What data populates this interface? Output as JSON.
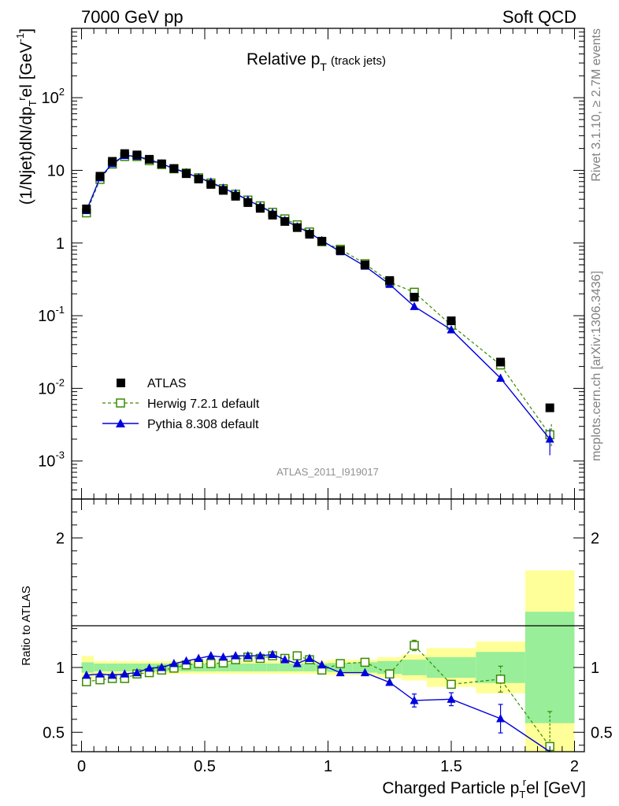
{
  "header": {
    "left_label": "7000 GeV pp",
    "right_label": "Soft QCD",
    "side_label_top": "Rivet 3.1.10, ≥ 2.7M events",
    "side_label_bottom": "mcplots.cern.ch [arXiv:1306.3436]"
  },
  "chart_data": [
    {
      "type": "scatter",
      "title_main": "Relative p",
      "title_sub": "T",
      "title_extra": "(track jets)",
      "ylabel": "(1/Njet)dN/dp",
      "ylabel_sub": "T",
      "ylabel_sup": "r",
      "ylabel_tail": "el [GeV",
      "ylabel_unit_sup": "-1",
      "ylabel_close": "]",
      "yscale": "log",
      "ylim": [
        0.0003,
        900
      ],
      "xlim": [
        -0.04,
        2.04
      ],
      "yticks": [
        {
          "label": "10",
          "exp": "-3",
          "value": 0.001
        },
        {
          "label": "10",
          "exp": "-2",
          "value": 0.01
        },
        {
          "label": "10",
          "exp": "-1",
          "value": 0.1
        },
        {
          "label": "1",
          "exp": "",
          "value": 1
        },
        {
          "label": "10",
          "exp": "",
          "value": 10
        },
        {
          "label": "10",
          "exp": "2",
          "value": 100
        }
      ],
      "watermark": "ATLAS_2011_I919017",
      "legend": {
        "position": "lower-left",
        "entries": [
          "ATLAS",
          "Herwig 7.2.1 default",
          "Pythia 8.308 default"
        ]
      },
      "colors": {
        "data": "#000000",
        "herwig": "#3a8a00",
        "pythia": "#0000dd"
      },
      "x": [
        0.02,
        0.075,
        0.125,
        0.175,
        0.225,
        0.275,
        0.325,
        0.375,
        0.425,
        0.475,
        0.525,
        0.575,
        0.625,
        0.675,
        0.725,
        0.775,
        0.825,
        0.875,
        0.925,
        0.975,
        1.05,
        1.15,
        1.25,
        1.35,
        1.5,
        1.7,
        1.9
      ],
      "series": [
        {
          "name": "ATLAS",
          "values": [
            2.95,
            8.3,
            13.3,
            17.0,
            16.3,
            14.2,
            12.3,
            10.6,
            9.0,
            7.6,
            6.4,
            5.3,
            4.4,
            3.6,
            3.0,
            2.42,
            1.98,
            1.63,
            1.32,
            1.06,
            0.79,
            0.5,
            0.305,
            0.18,
            0.085,
            0.023,
            0.0054
          ]
        },
        {
          "name": "Herwig 7.2.1 default",
          "values": [
            2.6,
            7.5,
            12.2,
            15.5,
            15.5,
            13.6,
            12.0,
            10.5,
            9.2,
            7.9,
            6.7,
            5.6,
            4.7,
            3.9,
            3.25,
            2.65,
            2.15,
            1.78,
            1.42,
            1.04,
            0.82,
            0.52,
            0.29,
            0.21,
            0.074,
            0.021,
            0.0023
          ]
        },
        {
          "name": "Pythia 8.308 default",
          "values": [
            2.8,
            7.9,
            12.4,
            16.0,
            15.6,
            14.1,
            12.3,
            10.6,
            9.3,
            7.9,
            6.9,
            5.7,
            4.8,
            3.9,
            3.2,
            2.6,
            2.05,
            1.68,
            1.38,
            1.08,
            0.76,
            0.48,
            0.27,
            0.134,
            0.064,
            0.0138,
            0.002
          ]
        }
      ],
      "error_bars": {
        "pythia_last": [
          0.0012,
          0.0028
        ],
        "herwig_last": [
          0.0016,
          0.0033
        ]
      }
    },
    {
      "type": "line",
      "ylabel": "Ratio to ATLAS",
      "xlabel": "Charged Particle p",
      "xlabel_sub": "T",
      "xlabel_sup": "r",
      "xlabel_tail": "el [GeV]",
      "ylim": [
        0.35,
        2.3
      ],
      "xlim": [
        -0.04,
        2.04
      ],
      "yticks": [
        {
          "label": "0.5",
          "value": 0.5
        },
        {
          "label": "1",
          "value": 1
        },
        {
          "label": "2",
          "value": 2
        }
      ],
      "xticks": [
        {
          "label": "0",
          "value": 0
        },
        {
          "label": "0.5",
          "value": 0.5
        },
        {
          "label": "1",
          "value": 1
        },
        {
          "label": "1.5",
          "value": 1.5
        },
        {
          "label": "2",
          "value": 2
        }
      ],
      "bins": [
        [
          0.0,
          0.05
        ],
        [
          0.05,
          0.1
        ],
        [
          0.1,
          0.15
        ],
        [
          0.15,
          0.2
        ],
        [
          0.2,
          0.25
        ],
        [
          0.25,
          0.3
        ],
        [
          0.3,
          0.35
        ],
        [
          0.35,
          0.4
        ],
        [
          0.4,
          0.45
        ],
        [
          0.45,
          0.5
        ],
        [
          0.5,
          0.55
        ],
        [
          0.55,
          0.6
        ],
        [
          0.6,
          0.65
        ],
        [
          0.65,
          0.7
        ],
        [
          0.7,
          0.75
        ],
        [
          0.75,
          0.8
        ],
        [
          0.8,
          0.85
        ],
        [
          0.85,
          0.9
        ],
        [
          0.9,
          0.95
        ],
        [
          0.95,
          1.0
        ],
        [
          1.0,
          1.1
        ],
        [
          1.1,
          1.2
        ],
        [
          1.2,
          1.3
        ],
        [
          1.3,
          1.4
        ],
        [
          1.4,
          1.6
        ],
        [
          1.6,
          1.8
        ],
        [
          1.8,
          2.0
        ]
      ],
      "band_total": [
        0.09,
        0.05,
        0.05,
        0.05,
        0.05,
        0.05,
        0.05,
        0.05,
        0.05,
        0.05,
        0.05,
        0.05,
        0.05,
        0.05,
        0.05,
        0.05,
        0.05,
        0.05,
        0.05,
        0.05,
        0.06,
        0.06,
        0.08,
        0.1,
        0.15,
        0.2,
        0.75
      ],
      "band_stat": [
        0.04,
        0.03,
        0.03,
        0.03,
        0.03,
        0.03,
        0.03,
        0.03,
        0.03,
        0.03,
        0.03,
        0.03,
        0.03,
        0.03,
        0.03,
        0.03,
        0.03,
        0.03,
        0.03,
        0.03,
        0.035,
        0.04,
        0.05,
        0.06,
        0.08,
        0.12,
        0.43
      ],
      "x": [
        0.02,
        0.075,
        0.125,
        0.175,
        0.225,
        0.275,
        0.325,
        0.375,
        0.425,
        0.475,
        0.525,
        0.575,
        0.625,
        0.675,
        0.725,
        0.775,
        0.825,
        0.875,
        0.925,
        0.975,
        1.05,
        1.15,
        1.25,
        1.35,
        1.5,
        1.7,
        1.9
      ],
      "series": [
        {
          "name": "Herwig 7.2.1 default",
          "values": [
            0.89,
            0.905,
            0.915,
            0.915,
            0.95,
            0.96,
            0.98,
            0.995,
            1.02,
            1.03,
            1.03,
            1.035,
            1.06,
            1.08,
            1.07,
            1.09,
            1.07,
            1.09,
            1.06,
            0.98,
            1.03,
            1.04,
            0.95,
            1.17,
            0.87,
            0.91,
            0.39
          ]
        },
        {
          "name": "Pythia 8.308 default",
          "values": [
            0.94,
            0.95,
            0.94,
            0.95,
            0.96,
            0.995,
            1.0,
            1.03,
            1.05,
            1.07,
            1.09,
            1.08,
            1.09,
            1.09,
            1.09,
            1.1,
            1.06,
            1.03,
            1.07,
            1.02,
            0.96,
            0.96,
            0.885,
            0.745,
            0.755,
            0.605,
            0.325
          ]
        }
      ],
      "ratio_errors": {
        "pythia": [
          [
            1.35,
            0.05
          ],
          [
            1.5,
            0.05
          ],
          [
            1.7,
            0.11
          ]
        ],
        "herwig": [
          [
            1.35,
            0.04
          ],
          [
            1.7,
            0.1
          ],
          [
            1.9,
            0.27
          ]
        ]
      }
    }
  ]
}
